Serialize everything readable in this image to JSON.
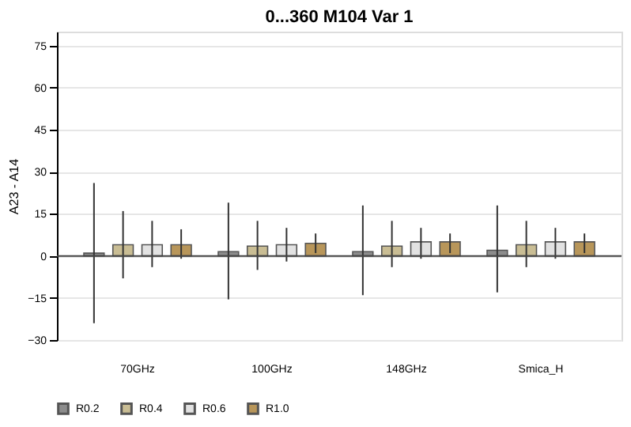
{
  "chart_data": {
    "type": "bar",
    "title": "0...360  M104  Var 1",
    "ylabel": "A23 - A14",
    "categories": [
      "70GHz",
      "100GHz",
      "148GHz",
      "Smica_H"
    ],
    "series": [
      {
        "name": "R0.2",
        "color": "#8c8c8c",
        "values": [
          1,
          1.5,
          1.5,
          2
        ],
        "errors": [
          [
            -24,
            26
          ],
          [
            -15.5,
            19
          ],
          [
            -14,
            18
          ],
          [
            -13,
            18
          ]
        ]
      },
      {
        "name": "R0.4",
        "color": "#c9bd94",
        "values": [
          4,
          3.5,
          3.5,
          4
        ],
        "errors": [
          [
            -8,
            16
          ],
          [
            -5,
            12.5
          ],
          [
            -4,
            12.5
          ],
          [
            -4,
            12.5
          ]
        ]
      },
      {
        "name": "R0.6",
        "color": "#e2e2e2",
        "values": [
          4,
          4,
          5,
          5
        ],
        "errors": [
          [
            -4,
            12.5
          ],
          [
            -2,
            10
          ],
          [
            -1,
            10
          ],
          [
            -1,
            10
          ]
        ]
      },
      {
        "name": "R1.0",
        "color": "#b8965a",
        "values": [
          4,
          4.5,
          5,
          5
        ],
        "errors": [
          [
            -1,
            9.5
          ],
          [
            1,
            8
          ],
          [
            1,
            8
          ],
          [
            1,
            8
          ]
        ]
      }
    ],
    "ylim": [
      -30,
      80
    ],
    "yticks": [
      -30,
      -15,
      0,
      15,
      30,
      45,
      60,
      75
    ],
    "grid": "y",
    "legend": "bottom"
  }
}
